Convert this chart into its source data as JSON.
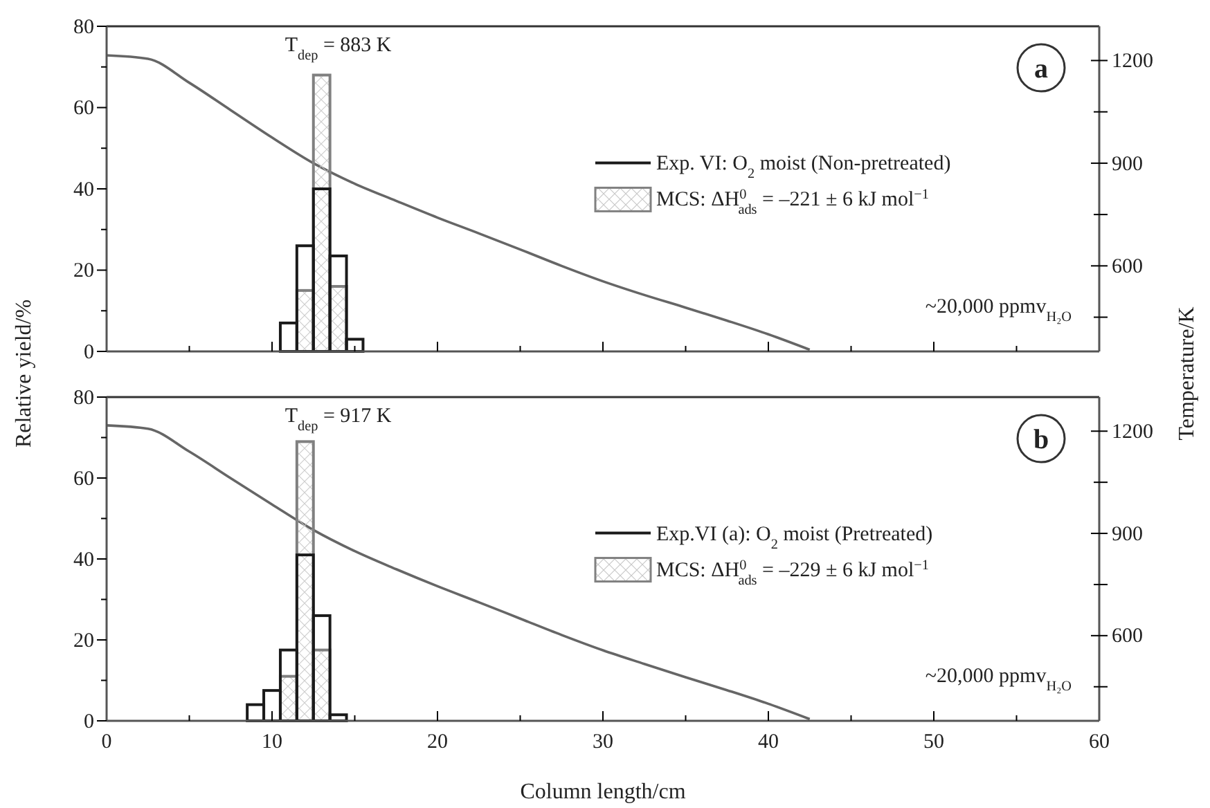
{
  "chart_data": [
    {
      "type": "histogram",
      "ylabel": "Relative yield/%",
      "y2label": "Temperature/K",
      "bins": [
        10.5,
        11.5,
        12.5,
        13.5,
        14.5,
        15.5
      ],
      "series": [
        {
          "name": "Exp. VI: O$_{2}$ moist (Non-pretreated)",
          "color": "#1a1a1a",
          "values": [
            7,
            26,
            40,
            23.5,
            3
          ]
        },
        {
          "name": "MCS: ΔH$^{0}$$_{ads}$ = –221 ± 6 kJ mol$^{−1}$",
          "color": "#808080",
          "values": [
            null,
            15,
            68,
            16,
            null
          ]
        },
        {
          "type": "line",
          "axis": "y2",
          "color": "#666666",
          "x": [
            0,
            2.5,
            5,
            7.5,
            10,
            12.5,
            15,
            17.5,
            20,
            22.5,
            25,
            27.5,
            30,
            32.5,
            35,
            37.5,
            40,
            42.5
          ],
          "values": [
            1215,
            1205,
            1135,
            1055,
            975,
            900,
            840,
            790,
            741,
            695,
            648,
            600,
            555,
            515,
            478,
            440,
            400,
            355
          ]
        }
      ],
      "xlim": [
        0,
        60
      ],
      "xticks": [
        0,
        {
          "value": 5,
          "label": null
        },
        10,
        {
          "value": 15,
          "label": null
        },
        20,
        {
          "value": 25,
          "label": null
        },
        30,
        {
          "value": 35,
          "label": null
        },
        40,
        {
          "value": 45,
          "label": null
        },
        50,
        {
          "value": 55,
          "label": null
        },
        60
      ],
      "ylim": [
        0,
        80
      ],
      "yticks": [
        0,
        {
          "value": 10,
          "label": null
        },
        20,
        {
          "value": 30,
          "label": null
        },
        40,
        {
          "value": 50,
          "label": null
        },
        60,
        {
          "value": 70,
          "label": null
        },
        80
      ],
      "y2lim": [
        350,
        1300
      ],
      "y2ticks": [
        {
          "value": 450,
          "label": null
        },
        600,
        {
          "value": 750,
          "label": null
        },
        900,
        {
          "value": 1050,
          "label": null
        },
        1200
      ],
      "tick_labels": "y",
      "legend": "right",
      "annotations": [
        "T$_{dep}$ = 883 K",
        "~20,000 ppmv$_{H₂O}$",
        "a"
      ]
    },
    {
      "type": "histogram",
      "xlabel": "Column length/cm",
      "bins": [
        8.5,
        9.5,
        10.5,
        11.5,
        12.5,
        13.5,
        14.5
      ],
      "series": [
        {
          "name": "Exp.VI (a): O$_{2}$ moist (Pretreated)",
          "color": "#1a1a1a",
          "values": [
            4,
            7.5,
            17.5,
            41,
            26,
            1.5
          ]
        },
        {
          "name": "MCS: ΔH$^{0}$$_{ads}$ = –229 ± 6 kJ mol$^{−1}$",
          "color": "#808080",
          "values": [
            null,
            null,
            11,
            69,
            17.5,
            null
          ]
        },
        {
          "type": "line",
          "axis": "y2",
          "color": "#666666",
          "x": [
            0,
            2.5,
            5,
            7.5,
            10,
            12.5,
            15,
            17.5,
            20,
            22.5,
            25,
            27.5,
            30,
            32.5,
            35,
            37.5,
            40,
            42.5
          ],
          "values": [
            1217,
            1207,
            1140,
            1062,
            985,
            910,
            848,
            795,
            745,
            698,
            650,
            602,
            557,
            517,
            478,
            440,
            400,
            355
          ]
        }
      ],
      "xlim": [
        0,
        60
      ],
      "xticks": [
        0,
        {
          "value": 5,
          "label": null
        },
        10,
        {
          "value": 15,
          "label": null
        },
        20,
        {
          "value": 25,
          "label": null
        },
        30,
        {
          "value": 35,
          "label": null
        },
        40,
        {
          "value": 45,
          "label": null
        },
        50,
        {
          "value": 55,
          "label": null
        },
        60
      ],
      "ylim": [
        0,
        80
      ],
      "yticks": [
        0,
        {
          "value": 10,
          "label": null
        },
        20,
        {
          "value": 30,
          "label": null
        },
        40,
        {
          "value": 50,
          "label": null
        },
        60,
        {
          "value": 70,
          "label": null
        },
        80
      ],
      "y2lim": [
        350,
        1300
      ],
      "y2ticks": [
        {
          "value": 450,
          "label": null
        },
        600,
        {
          "value": 750,
          "label": null
        },
        900,
        {
          "value": 1050,
          "label": null
        },
        1200
      ],
      "legend": "right",
      "annotations": [
        "T$_{dep}$ = 917 K",
        "~20,000 ppmv$_{H₂O}$",
        "b"
      ]
    }
  ]
}
